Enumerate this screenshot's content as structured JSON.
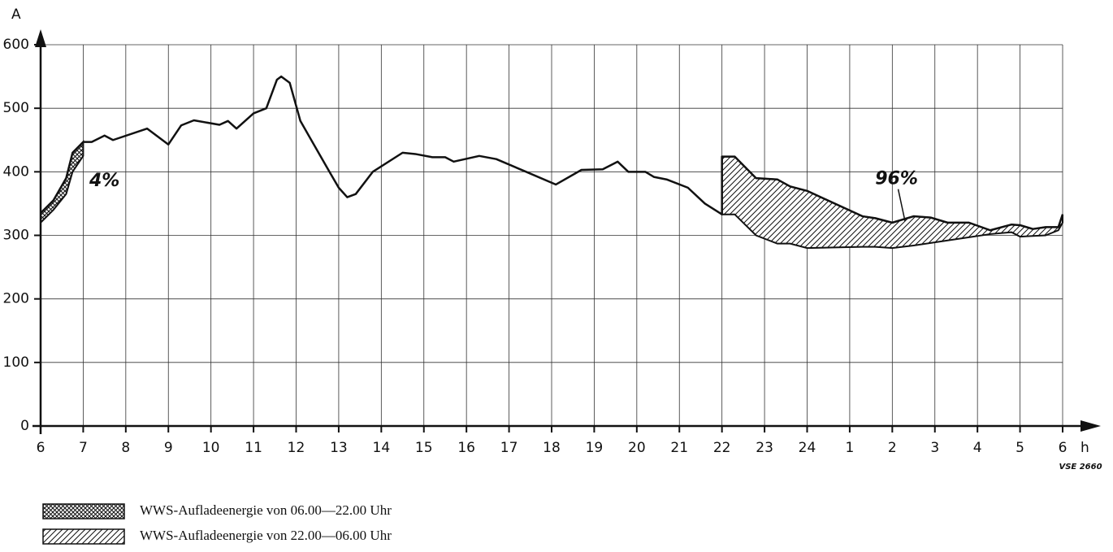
{
  "chart_data": {
    "type": "line",
    "y_axis_label": "A",
    "x_axis_label": "h",
    "source": "VSE 2660",
    "annotations": [
      {
        "text": "4%",
        "x": 7.5,
        "y": 385
      },
      {
        "text": "96%",
        "x": 26.1,
        "y": 388,
        "to_x": 26.3,
        "to_y": 322
      }
    ],
    "x": [
      6,
      6.3,
      6.6,
      6.75,
      7,
      7.2,
      7.5,
      7.7,
      8.5,
      9,
      9.3,
      9.6,
      10.2,
      10.4,
      10.6,
      11,
      11.3,
      11.55,
      11.65,
      11.85,
      12.1,
      12.8,
      13,
      13.2,
      13.4,
      13.8,
      14.5,
      14.8,
      15.2,
      15.5,
      15.7,
      16.3,
      16.7,
      17.4,
      18.1,
      18.7,
      19.2,
      19.55,
      19.8,
      20.2,
      20.4,
      20.7,
      21.2,
      21.6,
      22,
      22,
      22.3,
      22.8,
      23.3,
      23.6,
      24,
      25.3,
      25.6,
      26,
      26.5,
      26.9,
      27.3,
      27.8,
      28.3,
      28.8,
      29,
      29.3,
      29.6,
      29.9,
      30
    ],
    "series": [
      {
        "color": "#111111",
        "values": [
          335,
          355,
          390,
          430,
          447,
          447,
          457,
          450,
          468,
          443,
          473,
          481,
          474,
          480,
          468,
          492,
          500,
          545,
          550,
          540,
          480,
          398,
          375,
          360,
          365,
          400,
          430,
          428,
          423,
          423,
          416,
          425,
          420,
          400,
          380,
          403,
          404,
          416,
          400,
          400,
          392,
          388,
          375,
          350,
          333,
          424,
          424,
          390,
          388,
          377,
          370,
          330,
          327,
          320,
          330,
          328,
          320,
          320,
          308,
          317,
          316,
          310,
          313,
          313,
          333
        ]
      },
      {
        "name": "WWS-Aufladeenergie von 06.00—22.00 Uhr",
        "pattern": "crosshatch",
        "color": "#111111",
        "values": [
          320,
          340,
          365,
          400,
          425,
          null,
          null,
          null,
          null,
          null,
          null,
          null,
          null,
          null,
          null,
          null,
          null,
          null,
          null,
          null,
          null,
          null,
          null,
          null,
          null,
          null,
          null,
          null,
          null,
          null,
          null,
          null,
          null,
          null,
          null,
          null,
          null,
          null,
          null,
          null,
          null,
          null,
          null,
          null,
          null,
          null,
          null,
          null,
          null,
          null,
          null,
          null,
          null,
          null,
          null,
          null,
          null,
          null,
          null,
          null,
          null,
          null,
          null,
          null,
          null
        ]
      },
      {
        "name": "WWS-Aufladeenergie von 22.00—06.00 Uhr",
        "pattern": "diagonal",
        "color": "#111111",
        "values": [
          null,
          null,
          null,
          null,
          null,
          null,
          null,
          null,
          null,
          null,
          null,
          null,
          null,
          null,
          null,
          null,
          null,
          null,
          null,
          null,
          null,
          null,
          null,
          null,
          null,
          null,
          null,
          null,
          null,
          null,
          null,
          null,
          null,
          null,
          null,
          null,
          null,
          null,
          null,
          null,
          null,
          null,
          null,
          null,
          null,
          333,
          333,
          300,
          287,
          287,
          280,
          282,
          282,
          280,
          284,
          288,
          292,
          297,
          302,
          305,
          298,
          299,
          300,
          308,
          320
        ]
      }
    ],
    "xlim": [
      6,
      30
    ],
    "xticks": [
      6,
      7,
      8,
      9,
      10,
      11,
      12,
      13,
      14,
      15,
      16,
      17,
      18,
      19,
      20,
      21,
      22,
      23,
      24,
      {
        "value": 25,
        "label": "1"
      },
      {
        "value": 26,
        "label": "2"
      },
      {
        "value": 27,
        "label": "3"
      },
      {
        "value": 28,
        "label": "4"
      },
      {
        "value": 29,
        "label": "5"
      },
      {
        "value": 30,
        "label": "6"
      }
    ],
    "ylim": [
      0,
      600
    ],
    "yticks": [
      0,
      100,
      200,
      300,
      400,
      500,
      600
    ],
    "grid": true
  }
}
